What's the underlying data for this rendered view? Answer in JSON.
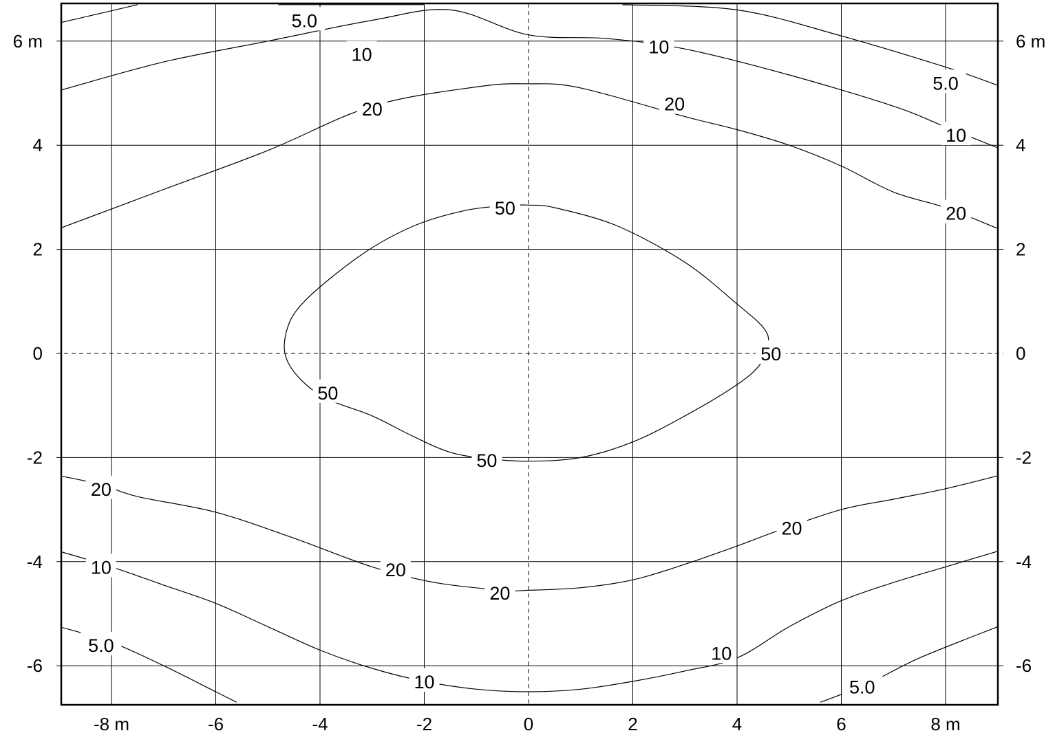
{
  "chart_data": {
    "type": "contour",
    "title": "",
    "xlabel": "",
    "ylabel": "",
    "xlim": [
      -9,
      9
    ],
    "ylim": [
      -6.7,
      6.7
    ],
    "x_ticks": [
      {
        "value": -8,
        "label": "-8 m"
      },
      {
        "value": -6,
        "label": "-6"
      },
      {
        "value": -4,
        "label": "-4"
      },
      {
        "value": -2,
        "label": "-2"
      },
      {
        "value": 0,
        "label": "0"
      },
      {
        "value": 2,
        "label": "2"
      },
      {
        "value": 4,
        "label": "4"
      },
      {
        "value": 6,
        "label": "6"
      },
      {
        "value": 8,
        "label": "8 m"
      }
    ],
    "y_ticks": [
      {
        "value": 6,
        "label": "6 m"
      },
      {
        "value": 4,
        "label": "4"
      },
      {
        "value": 2,
        "label": "2"
      },
      {
        "value": 0,
        "label": "0"
      },
      {
        "value": -2,
        "label": "-2"
      },
      {
        "value": -4,
        "label": "-4"
      },
      {
        "value": -6,
        "label": "-6"
      }
    ],
    "grid": true,
    "zero_lines_dashed": true,
    "contours": [
      {
        "level": "5.0",
        "points": [
          [
            -9,
            6.35
          ],
          [
            -7.5,
            6.7
          ]
        ]
      },
      {
        "level": "5.0",
        "points": [
          [
            -4.8,
            6.7
          ],
          [
            -2,
            6.7
          ]
        ]
      },
      {
        "level": "5.0",
        "points": [
          [
            1.8,
            6.7
          ],
          [
            4,
            6.6
          ],
          [
            6,
            6.1
          ],
          [
            8,
            5.5
          ],
          [
            9,
            5.15
          ]
        ]
      },
      {
        "level": "10",
        "points": [
          [
            -9,
            5.05
          ],
          [
            -7,
            5.6
          ],
          [
            -5,
            6.0
          ],
          [
            -3,
            6.4
          ],
          [
            -1.5,
            6.6
          ],
          [
            0,
            6.12
          ],
          [
            1.5,
            6.05
          ],
          [
            3,
            5.85
          ],
          [
            5,
            5.35
          ],
          [
            7,
            4.75
          ],
          [
            8,
            4.35
          ],
          [
            9,
            3.95
          ]
        ]
      },
      {
        "level": "20",
        "points": [
          [
            -9,
            2.4
          ],
          [
            -7,
            3.15
          ],
          [
            -5,
            3.9
          ],
          [
            -3,
            4.75
          ],
          [
            -1,
            5.12
          ],
          [
            0,
            5.18
          ],
          [
            1,
            5.1
          ],
          [
            3,
            4.55
          ],
          [
            4,
            4.3
          ],
          [
            5,
            4.0
          ],
          [
            6,
            3.6
          ],
          [
            7,
            3.1
          ],
          [
            8,
            2.8
          ],
          [
            9,
            2.4
          ]
        ]
      },
      {
        "level": "50",
        "points": [
          [
            -0.35,
            2.85
          ],
          [
            0,
            2.85
          ],
          [
            0.5,
            2.8
          ],
          [
            1.7,
            2.45
          ],
          [
            3,
            1.75
          ],
          [
            4,
            0.95
          ],
          [
            4.5,
            0.5
          ],
          [
            4.6,
            0.2
          ],
          [
            4.45,
            -0.2
          ],
          [
            4,
            -0.6
          ],
          [
            3,
            -1.2
          ],
          [
            2,
            -1.7
          ],
          [
            1,
            -2.0
          ],
          [
            0,
            -2.07
          ],
          [
            -0.8,
            -2.02
          ],
          [
            -1.5,
            -1.9
          ],
          [
            -2.2,
            -1.6
          ],
          [
            -3,
            -1.2
          ],
          [
            -4,
            -0.8
          ],
          [
            -4.6,
            -0.2
          ],
          [
            -4.65,
            0.4
          ],
          [
            -4.3,
            1.0
          ],
          [
            -3.2,
            1.9
          ],
          [
            -2.2,
            2.45
          ],
          [
            -1.2,
            2.75
          ],
          [
            -0.35,
            2.85
          ]
        ]
      },
      {
        "level": "20",
        "points": [
          [
            -9,
            -2.35
          ],
          [
            -8.2,
            -2.52
          ],
          [
            -7.5,
            -2.75
          ],
          [
            -6,
            -3.05
          ],
          [
            -4.5,
            -3.55
          ],
          [
            -3,
            -4.1
          ],
          [
            -1.8,
            -4.4
          ],
          [
            -0.5,
            -4.55
          ],
          [
            0,
            -4.55
          ],
          [
            1,
            -4.5
          ],
          [
            2,
            -4.35
          ],
          [
            3,
            -4.05
          ],
          [
            4,
            -3.7
          ],
          [
            4.8,
            -3.4
          ],
          [
            6,
            -3.0
          ],
          [
            7,
            -2.8
          ],
          [
            8,
            -2.6
          ],
          [
            9,
            -2.35
          ]
        ]
      },
      {
        "level": "10",
        "points": [
          [
            -9,
            -3.8
          ],
          [
            -8,
            -4.1
          ],
          [
            -7,
            -4.45
          ],
          [
            -6,
            -4.8
          ],
          [
            -5,
            -5.25
          ],
          [
            -4,
            -5.7
          ],
          [
            -3,
            -6.05
          ],
          [
            -2,
            -6.3
          ],
          [
            -1,
            -6.45
          ],
          [
            0,
            -6.5
          ],
          [
            1,
            -6.45
          ],
          [
            2,
            -6.3
          ],
          [
            3,
            -6.1
          ],
          [
            4,
            -5.85
          ],
          [
            5,
            -5.25
          ],
          [
            6,
            -4.75
          ],
          [
            7,
            -4.4
          ],
          [
            8,
            -4.1
          ],
          [
            9,
            -3.8
          ]
        ]
      },
      {
        "level": "5.0",
        "points": [
          [
            -9,
            -5.25
          ],
          [
            -8,
            -5.55
          ],
          [
            -7,
            -6.0
          ],
          [
            -6,
            -6.5
          ],
          [
            -5.6,
            -6.7
          ]
        ]
      },
      {
        "level": "5.0",
        "points": [
          [
            5.6,
            -6.7
          ],
          [
            6.5,
            -6.35
          ],
          [
            7.5,
            -5.85
          ],
          [
            9,
            -5.25
          ]
        ]
      }
    ],
    "contour_labels": [
      {
        "text": "5.0",
        "x": -4.3,
        "y": 6.4
      },
      {
        "text": "10",
        "x": -3.2,
        "y": 5.75
      },
      {
        "text": "10",
        "x": 2.5,
        "y": 5.9
      },
      {
        "text": "5.0",
        "x": 8.0,
        "y": 5.2
      },
      {
        "text": "20",
        "x": -3.0,
        "y": 4.7
      },
      {
        "text": "20",
        "x": 2.8,
        "y": 4.8
      },
      {
        "text": "10",
        "x": 8.2,
        "y": 4.2
      },
      {
        "text": "20",
        "x": 8.2,
        "y": 2.7
      },
      {
        "text": "50",
        "x": -0.45,
        "y": 2.8
      },
      {
        "text": "50",
        "x": 4.65,
        "y": 0.0
      },
      {
        "text": "50",
        "x": -3.85,
        "y": -0.75
      },
      {
        "text": "50",
        "x": -0.8,
        "y": -2.05
      },
      {
        "text": "20",
        "x": -8.2,
        "y": -2.6
      },
      {
        "text": "20",
        "x": 5.05,
        "y": -3.35
      },
      {
        "text": "10",
        "x": -8.2,
        "y": -4.1
      },
      {
        "text": "20",
        "x": -2.55,
        "y": -4.15
      },
      {
        "text": "20",
        "x": -0.55,
        "y": -4.6
      },
      {
        "text": "5.0",
        "x": -8.2,
        "y": -5.6
      },
      {
        "text": "10",
        "x": 3.7,
        "y": -5.75
      },
      {
        "text": "10",
        "x": -2.0,
        "y": -6.3
      },
      {
        "text": "5.0",
        "x": 6.4,
        "y": -6.4
      }
    ]
  }
}
